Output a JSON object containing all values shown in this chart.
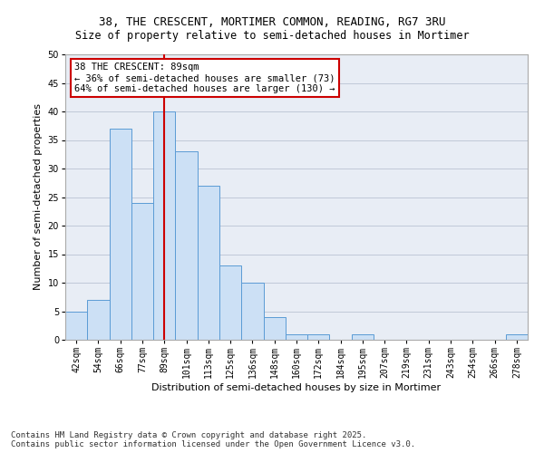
{
  "title_line1": "38, THE CRESCENT, MORTIMER COMMON, READING, RG7 3RU",
  "title_line2": "Size of property relative to semi-detached houses in Mortimer",
  "xlabel": "Distribution of semi-detached houses by size in Mortimer",
  "ylabel": "Number of semi-detached properties",
  "categories": [
    "42sqm",
    "54sqm",
    "66sqm",
    "77sqm",
    "89sqm",
    "101sqm",
    "113sqm",
    "125sqm",
    "136sqm",
    "148sqm",
    "160sqm",
    "172sqm",
    "184sqm",
    "195sqm",
    "207sqm",
    "219sqm",
    "231sqm",
    "243sqm",
    "254sqm",
    "266sqm",
    "278sqm"
  ],
  "values": [
    5,
    7,
    37,
    24,
    40,
    33,
    27,
    13,
    10,
    4,
    1,
    1,
    0,
    1,
    0,
    0,
    0,
    0,
    0,
    0,
    1
  ],
  "bar_color": "#cce0f5",
  "bar_edge_color": "#5b9bd5",
  "highlight_index": 4,
  "highlight_line_color": "#cc0000",
  "annotation_line1": "38 THE CRESCENT: 89sqm",
  "annotation_line2": "← 36% of semi-detached houses are smaller (73)",
  "annotation_line3": "64% of semi-detached houses are larger (130) →",
  "annotation_box_edge_color": "#cc0000",
  "ylim": [
    0,
    50
  ],
  "yticks": [
    0,
    5,
    10,
    15,
    20,
    25,
    30,
    35,
    40,
    45,
    50
  ],
  "grid_color": "#c0c8d8",
  "background_color": "#e8edf5",
  "footer_line1": "Contains HM Land Registry data © Crown copyright and database right 2025.",
  "footer_line2": "Contains public sector information licensed under the Open Government Licence v3.0.",
  "title_fontsize": 9,
  "subtitle_fontsize": 8.5,
  "axis_label_fontsize": 8,
  "tick_fontsize": 7,
  "annotation_fontsize": 7.5,
  "footer_fontsize": 6.5
}
